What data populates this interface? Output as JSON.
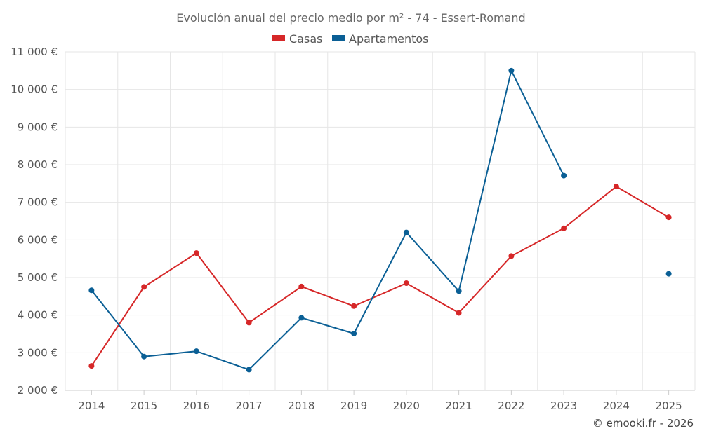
{
  "chart_data": {
    "type": "line",
    "title": "Evolución anual del precio medio por m² - 74 - Essert-Romand",
    "x": [
      "2014",
      "2015",
      "2016",
      "2017",
      "2018",
      "2019",
      "2020",
      "2021",
      "2022",
      "2023",
      "2024",
      "2025"
    ],
    "series": [
      {
        "name": "Casas",
        "color": "#d62728",
        "values": [
          2650,
          4750,
          5650,
          3800,
          4760,
          4240,
          4850,
          4060,
          5570,
          6310,
          7420,
          6600
        ]
      },
      {
        "name": "Apartamentos",
        "color": "#0a5f95",
        "values": [
          4660,
          2900,
          3040,
          2550,
          3930,
          3510,
          6200,
          4640,
          10500,
          7710,
          null,
          5100
        ]
      }
    ],
    "ylim": [
      2000,
      11000
    ],
    "yticks": [
      2000,
      3000,
      4000,
      5000,
      6000,
      7000,
      8000,
      9000,
      10000,
      11000
    ],
    "ytick_labels": [
      "2 000 €",
      "3 000 €",
      "4 000 €",
      "5 000 €",
      "6 000 €",
      "7 000 €",
      "8 000 €",
      "9 000 €",
      "10 000 €",
      "11 000 €"
    ],
    "xlabel": "",
    "ylabel": "",
    "grid": true,
    "legend": "top-center"
  },
  "credit": "© emooki.fr - 2026"
}
